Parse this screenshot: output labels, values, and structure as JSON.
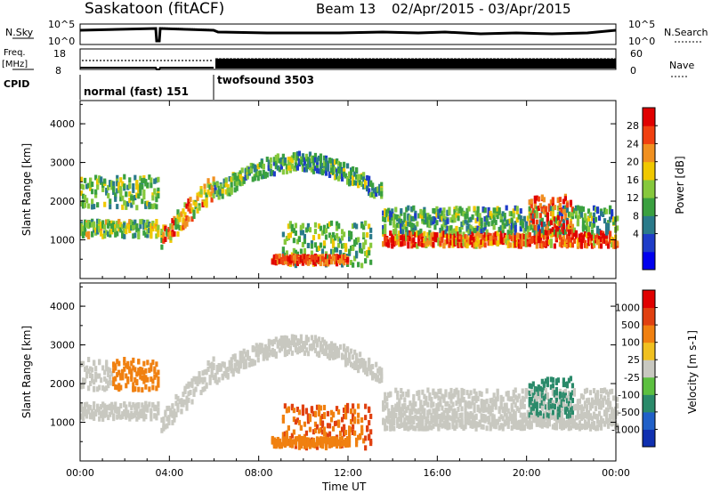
{
  "header": {
    "title": "Saskatoon (fitACF)",
    "beam": "Beam 13",
    "date_range": "02/Apr/2015 - 03/Apr/2015"
  },
  "labels": {
    "nsky": "N.Sky",
    "nsearch": "N.Search",
    "freq_line1": "Freq.",
    "freq_line2": "[MHz]",
    "nave": "Nave",
    "cpid": "CPID",
    "nsky_ticks": [
      "10^5",
      "10^0"
    ],
    "nsearch_ticks": [
      "10^5",
      "10^0"
    ],
    "freq_ticks": [
      "18",
      "8"
    ],
    "nave_ticks": [
      "60",
      "0"
    ],
    "cpid_modes": [
      "normal (fast) 151",
      "twofsound 3503"
    ]
  },
  "chart_data": [
    {
      "type": "heatmap",
      "panel": "power",
      "ylabel": "Slant Range [km]",
      "yticks": [
        1000,
        2000,
        3000,
        4000
      ],
      "colorbar_label": "Power [dB]",
      "colorbar_ticks": [
        "28",
        "24",
        "20",
        "16",
        "12",
        "8",
        "4"
      ],
      "colors": [
        "#0000ee",
        "#1e3cc8",
        "#2a7a8a",
        "#3aa040",
        "#86c83c",
        "#f0c800",
        "#f09020",
        "#f04010",
        "#e00000"
      ],
      "grid": false
    },
    {
      "type": "heatmap",
      "panel": "velocity",
      "ylabel": "Slant Range [km]",
      "yticks": [
        1000,
        2000,
        3000,
        4000
      ],
      "colorbar_label": "Velocity [m s-1]",
      "colorbar_ticks": [
        "1000",
        "500",
        "100",
        "25",
        "-25",
        "-100",
        "-500",
        "-1000"
      ],
      "colors": [
        "#1030b0",
        "#2060c8",
        "#2a8a6a",
        "#5cc040",
        "#c8c8c0",
        "#f0c020",
        "#f08010",
        "#e04010",
        "#e00000"
      ],
      "grid": false
    }
  ],
  "xaxis": {
    "label": "Time UT",
    "ticks": [
      "00:00",
      "04:00",
      "08:00",
      "12:00",
      "16:00",
      "20:00",
      "00:00"
    ]
  }
}
